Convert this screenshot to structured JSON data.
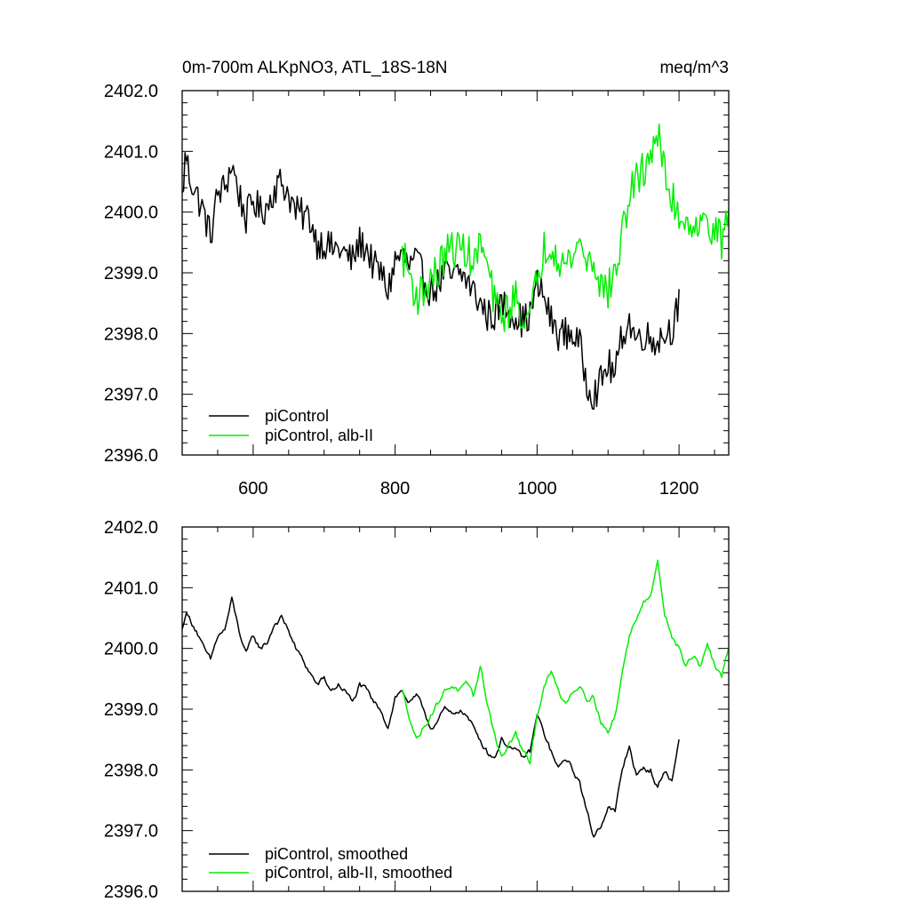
{
  "header": {
    "title": "0m-700m ALKpNO3, ATL_18S-18N",
    "units": "meq/m^3"
  },
  "colors": {
    "piControl": "#000000",
    "alb_II": "#00ee00"
  },
  "chart_data": [
    {
      "type": "line",
      "panel": "top",
      "xlim": [
        500,
        1270
      ],
      "ylim": [
        2396.0,
        2402.0
      ],
      "x_ticks": [
        600,
        800,
        1000,
        1200
      ],
      "x_tick_labels": [
        "600",
        "800",
        "1000",
        "1200"
      ],
      "y_ticks": [
        2396.0,
        2397.0,
        2398.0,
        2399.0,
        2400.0,
        2401.0,
        2402.0
      ],
      "y_tick_labels": [
        "2396.0",
        "2397.0",
        "2398.0",
        "2399.0",
        "2400.0",
        "2401.0",
        "2402.0"
      ],
      "legend_position": "bottom-left",
      "series": [
        {
          "name": "piControl",
          "color": "#000000",
          "x_range": [
            500,
            1200
          ],
          "anchors": [
            [
              500,
              2400.2
            ],
            [
              505,
              2401.0
            ],
            [
              510,
              2400.6
            ],
            [
              520,
              2400.3
            ],
            [
              530,
              2400.0
            ],
            [
              540,
              2399.6
            ],
            [
              550,
              2400.3
            ],
            [
              560,
              2400.4
            ],
            [
              570,
              2400.8
            ],
            [
              580,
              2400.3
            ],
            [
              590,
              2399.9
            ],
            [
              600,
              2400.2
            ],
            [
              610,
              2400.0
            ],
            [
              620,
              2400.1
            ],
            [
              630,
              2400.4
            ],
            [
              640,
              2400.5
            ],
            [
              650,
              2400.3
            ],
            [
              660,
              2400.0
            ],
            [
              680,
              2399.9
            ],
            [
              690,
              2399.5
            ],
            [
              700,
              2399.5
            ],
            [
              710,
              2399.4
            ],
            [
              720,
              2399.4
            ],
            [
              730,
              2399.3
            ],
            [
              740,
              2399.2
            ],
            [
              750,
              2399.5
            ],
            [
              760,
              2399.4
            ],
            [
              770,
              2399.1
            ],
            [
              780,
              2399.0
            ],
            [
              790,
              2398.7
            ],
            [
              800,
              2399.2
            ],
            [
              810,
              2399.3
            ],
            [
              820,
              2399.1
            ],
            [
              830,
              2399.2
            ],
            [
              840,
              2398.9
            ],
            [
              850,
              2398.7
            ],
            [
              860,
              2398.8
            ],
            [
              870,
              2399.0
            ],
            [
              880,
              2398.9
            ],
            [
              890,
              2399.0
            ],
            [
              900,
              2398.9
            ],
            [
              910,
              2398.7
            ],
            [
              920,
              2398.5
            ],
            [
              930,
              2398.3
            ],
            [
              940,
              2398.3
            ],
            [
              950,
              2398.5
            ],
            [
              960,
              2398.4
            ],
            [
              970,
              2398.3
            ],
            [
              980,
              2398.2
            ],
            [
              990,
              2398.3
            ],
            [
              1000,
              2398.8
            ],
            [
              1010,
              2398.6
            ],
            [
              1020,
              2398.2
            ],
            [
              1030,
              2398.0
            ],
            [
              1040,
              2398.0
            ],
            [
              1050,
              2398.0
            ],
            [
              1060,
              2397.8
            ],
            [
              1070,
              2397.2
            ],
            [
              1080,
              2397.0
            ],
            [
              1090,
              2397.2
            ],
            [
              1100,
              2397.5
            ],
            [
              1110,
              2397.3
            ],
            [
              1120,
              2398.0
            ],
            [
              1130,
              2398.2
            ],
            [
              1140,
              2397.9
            ],
            [
              1150,
              2398.0
            ],
            [
              1160,
              2397.9
            ],
            [
              1170,
              2397.9
            ],
            [
              1180,
              2398.0
            ],
            [
              1190,
              2398.1
            ],
            [
              1200,
              2398.5
            ]
          ],
          "noise_amplitude": 0.28
        },
        {
          "name": "piControl, alb-II",
          "color": "#00ee00",
          "x_range": [
            810,
            1270
          ],
          "anchors": [
            [
              810,
              2399.3
            ],
            [
              820,
              2399.0
            ],
            [
              830,
              2398.6
            ],
            [
              840,
              2398.7
            ],
            [
              850,
              2398.9
            ],
            [
              860,
              2399.0
            ],
            [
              870,
              2399.3
            ],
            [
              880,
              2399.4
            ],
            [
              890,
              2399.4
            ],
            [
              900,
              2399.4
            ],
            [
              910,
              2399.1
            ],
            [
              920,
              2399.5
            ],
            [
              930,
              2399.1
            ],
            [
              940,
              2398.5
            ],
            [
              950,
              2398.3
            ],
            [
              960,
              2398.4
            ],
            [
              970,
              2398.6
            ],
            [
              980,
              2398.3
            ],
            [
              990,
              2398.2
            ],
            [
              1000,
              2398.9
            ],
            [
              1010,
              2399.4
            ],
            [
              1020,
              2399.5
            ],
            [
              1030,
              2399.3
            ],
            [
              1040,
              2399.1
            ],
            [
              1050,
              2399.3
            ],
            [
              1060,
              2399.5
            ],
            [
              1070,
              2399.2
            ],
            [
              1080,
              2399.2
            ],
            [
              1090,
              2398.8
            ],
            [
              1100,
              2398.7
            ],
            [
              1110,
              2399.0
            ],
            [
              1120,
              2399.6
            ],
            [
              1130,
              2400.3
            ],
            [
              1140,
              2400.5
            ],
            [
              1150,
              2400.7
            ],
            [
              1160,
              2401.0
            ],
            [
              1170,
              2401.3
            ],
            [
              1180,
              2400.6
            ],
            [
              1190,
              2400.2
            ],
            [
              1200,
              2400.0
            ],
            [
              1210,
              2399.8
            ],
            [
              1220,
              2399.9
            ],
            [
              1230,
              2399.7
            ],
            [
              1240,
              2399.9
            ],
            [
              1250,
              2399.7
            ],
            [
              1260,
              2399.5
            ],
            [
              1270,
              2400.0
            ]
          ],
          "noise_amplitude": 0.32
        }
      ]
    },
    {
      "type": "line",
      "panel": "bottom",
      "xlim": [
        500,
        1270
      ],
      "ylim": [
        2396.0,
        2402.0
      ],
      "x_ticks": [
        600,
        800,
        1000,
        1200
      ],
      "y_ticks": [
        2396.0,
        2397.0,
        2398.0,
        2399.0,
        2400.0,
        2401.0,
        2402.0
      ],
      "y_tick_labels": [
        "2396.0",
        "2397.0",
        "2398.0",
        "2399.0",
        "2400.0",
        "2401.0",
        "2402.0"
      ],
      "legend_position": "bottom-left",
      "series": [
        {
          "name": "piControl, smoothed",
          "color": "#000000",
          "x_range": [
            500,
            1200
          ],
          "anchors": [
            [
              500,
              2400.3
            ],
            [
              505,
              2400.6
            ],
            [
              510,
              2400.5
            ],
            [
              520,
              2400.3
            ],
            [
              530,
              2400.0
            ],
            [
              540,
              2399.8
            ],
            [
              550,
              2400.2
            ],
            [
              560,
              2400.3
            ],
            [
              570,
              2400.8
            ],
            [
              580,
              2400.3
            ],
            [
              590,
              2399.9
            ],
            [
              600,
              2400.2
            ],
            [
              610,
              2400.0
            ],
            [
              620,
              2400.1
            ],
            [
              630,
              2400.4
            ],
            [
              640,
              2400.5
            ],
            [
              650,
              2400.3
            ],
            [
              660,
              2400.0
            ],
            [
              670,
              2399.8
            ],
            [
              680,
              2399.6
            ],
            [
              690,
              2399.4
            ],
            [
              700,
              2399.5
            ],
            [
              710,
              2399.3
            ],
            [
              720,
              2399.4
            ],
            [
              730,
              2399.3
            ],
            [
              740,
              2399.1
            ],
            [
              750,
              2399.4
            ],
            [
              760,
              2399.3
            ],
            [
              770,
              2399.1
            ],
            [
              780,
              2399.0
            ],
            [
              790,
              2398.7
            ],
            [
              800,
              2399.2
            ],
            [
              810,
              2399.3
            ],
            [
              820,
              2399.1
            ],
            [
              830,
              2399.2
            ],
            [
              840,
              2399.0
            ],
            [
              850,
              2398.7
            ],
            [
              860,
              2398.8
            ],
            [
              870,
              2399.0
            ],
            [
              880,
              2398.9
            ],
            [
              890,
              2399.0
            ],
            [
              900,
              2398.9
            ],
            [
              910,
              2398.7
            ],
            [
              920,
              2398.5
            ],
            [
              930,
              2398.3
            ],
            [
              940,
              2398.2
            ],
            [
              950,
              2398.5
            ],
            [
              960,
              2398.4
            ],
            [
              970,
              2398.3
            ],
            [
              980,
              2398.2
            ],
            [
              990,
              2398.3
            ],
            [
              1000,
              2398.9
            ],
            [
              1010,
              2398.6
            ],
            [
              1020,
              2398.3
            ],
            [
              1030,
              2398.0
            ],
            [
              1040,
              2398.2
            ],
            [
              1050,
              2398.0
            ],
            [
              1060,
              2397.8
            ],
            [
              1070,
              2397.3
            ],
            [
              1080,
              2396.9
            ],
            [
              1090,
              2397.1
            ],
            [
              1100,
              2397.4
            ],
            [
              1110,
              2397.3
            ],
            [
              1120,
              2398.0
            ],
            [
              1130,
              2398.4
            ],
            [
              1140,
              2397.9
            ],
            [
              1150,
              2398.0
            ],
            [
              1160,
              2398.0
            ],
            [
              1170,
              2397.7
            ],
            [
              1180,
              2398.0
            ],
            [
              1190,
              2397.8
            ],
            [
              1200,
              2398.5
            ]
          ],
          "noise_amplitude": 0.1
        },
        {
          "name": "piControl, alb-II, smoothed",
          "color": "#00ee00",
          "x_range": [
            810,
            1270
          ],
          "anchors": [
            [
              810,
              2399.3
            ],
            [
              820,
              2398.9
            ],
            [
              830,
              2398.5
            ],
            [
              840,
              2398.7
            ],
            [
              850,
              2398.9
            ],
            [
              860,
              2399.1
            ],
            [
              870,
              2399.3
            ],
            [
              880,
              2399.4
            ],
            [
              890,
              2399.3
            ],
            [
              900,
              2399.4
            ],
            [
              910,
              2399.2
            ],
            [
              920,
              2399.7
            ],
            [
              930,
              2399.1
            ],
            [
              940,
              2398.6
            ],
            [
              950,
              2398.2
            ],
            [
              960,
              2398.4
            ],
            [
              970,
              2398.6
            ],
            [
              980,
              2398.3
            ],
            [
              990,
              2398.1
            ],
            [
              1000,
              2398.9
            ],
            [
              1010,
              2399.4
            ],
            [
              1020,
              2399.6
            ],
            [
              1030,
              2399.3
            ],
            [
              1040,
              2399.1
            ],
            [
              1050,
              2399.3
            ],
            [
              1060,
              2399.4
            ],
            [
              1070,
              2399.2
            ],
            [
              1080,
              2399.2
            ],
            [
              1090,
              2398.8
            ],
            [
              1100,
              2398.6
            ],
            [
              1110,
              2398.9
            ],
            [
              1120,
              2399.6
            ],
            [
              1130,
              2400.2
            ],
            [
              1140,
              2400.5
            ],
            [
              1150,
              2400.8
            ],
            [
              1160,
              2400.9
            ],
            [
              1170,
              2401.4
            ],
            [
              1180,
              2400.6
            ],
            [
              1190,
              2400.2
            ],
            [
              1200,
              2400.0
            ],
            [
              1210,
              2399.7
            ],
            [
              1220,
              2399.9
            ],
            [
              1230,
              2399.7
            ],
            [
              1240,
              2400.1
            ],
            [
              1250,
              2399.7
            ],
            [
              1260,
              2399.5
            ],
            [
              1270,
              2400.0
            ]
          ],
          "noise_amplitude": 0.1
        }
      ]
    }
  ]
}
